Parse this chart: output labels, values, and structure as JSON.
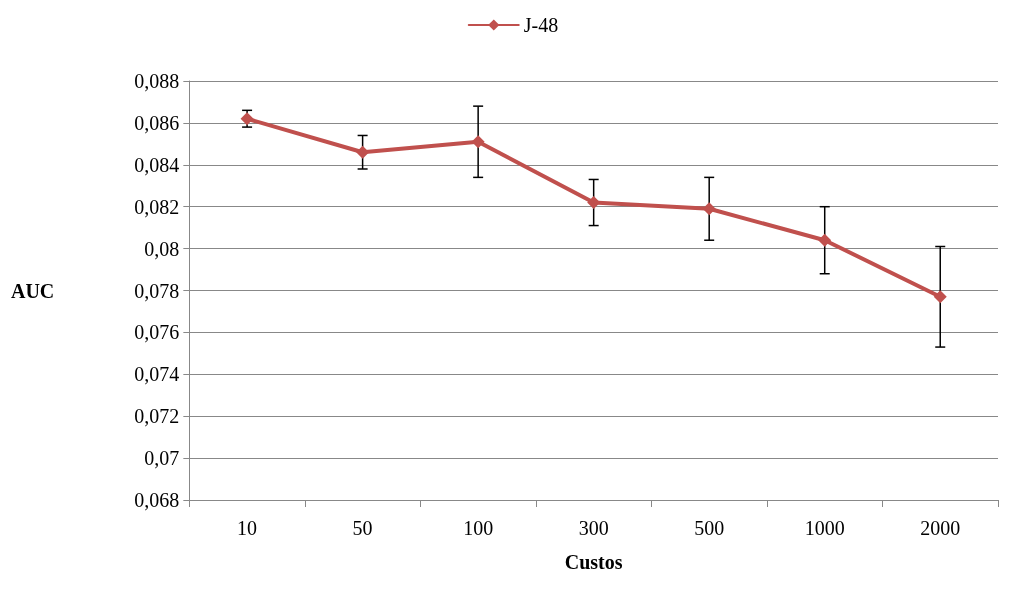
{
  "chart_data": {
    "type": "line",
    "xlabel": "Custos",
    "ylabel": "AUC",
    "categories": [
      "10",
      "50",
      "100",
      "300",
      "500",
      "1000",
      "2000"
    ],
    "series": [
      {
        "name": "J-48",
        "color": "#c0504d",
        "values": [
          0.0862,
          0.0846,
          0.0851,
          0.0822,
          0.0819,
          0.0804,
          0.0777
        ],
        "errors": [
          0.0004,
          0.0008,
          0.0017,
          0.0011,
          0.0015,
          0.0016,
          0.0024
        ]
      }
    ],
    "ylim": [
      0.068,
      0.088
    ],
    "yticks": [
      {
        "value": 0.068,
        "label": "0,068"
      },
      {
        "value": 0.07,
        "label": "0,07"
      },
      {
        "value": 0.072,
        "label": "0,072"
      },
      {
        "value": 0.074,
        "label": "0,074"
      },
      {
        "value": 0.076,
        "label": "0,076"
      },
      {
        "value": 0.078,
        "label": "0,078"
      },
      {
        "value": 0.08,
        "label": "0,08"
      },
      {
        "value": 0.082,
        "label": "0,082"
      },
      {
        "value": 0.084,
        "label": "0,084"
      },
      {
        "value": 0.086,
        "label": "0,086"
      },
      {
        "value": 0.088,
        "label": "0,088"
      }
    ],
    "grid": "y",
    "legend": "top",
    "marker": "diamond",
    "line_style": "solid"
  }
}
